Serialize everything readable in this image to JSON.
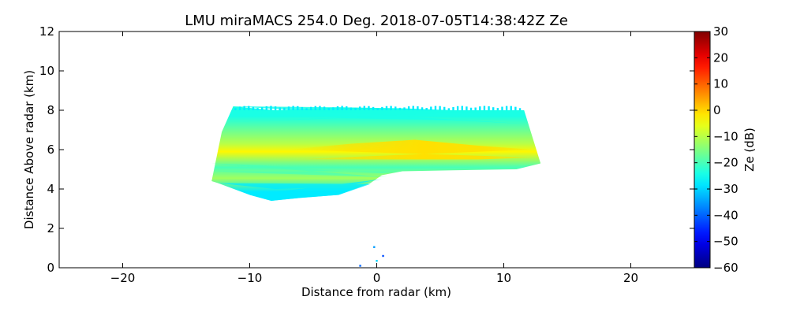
{
  "chart_data": {
    "type": "heatmap",
    "title": "LMU miraMACS 254.0 Deg. 2018-07-05T14:38:42Z  Ze",
    "xlabel": "Distance from radar (km)",
    "ylabel": "Distance Above radar  (km)",
    "xlim": [
      -25,
      25
    ],
    "ylim": [
      0,
      12
    ],
    "xticks": [
      -20,
      -10,
      0,
      10,
      20
    ],
    "yticks": [
      0,
      2,
      4,
      6,
      8,
      10,
      12
    ],
    "colorbar": {
      "label": "Ze (dB)",
      "range": [
        -60,
        30
      ],
      "ticks": [
        30,
        20,
        10,
        0,
        -10,
        -20,
        -30,
        -40,
        -50,
        -60
      ],
      "colormap": "jet"
    },
    "echo_region": {
      "top_km": 8.2,
      "bottom_left_km": 3.4,
      "bottom_right_km": 5.3,
      "left_edge_km": -13,
      "right_edge_km": 12.9
    },
    "layers": [
      {
        "name": "upper edge",
        "y_top": 8.1,
        "y_bottom": 7.3,
        "ze_db": -24
      },
      {
        "name": "upper main",
        "y_top": 7.3,
        "y_bottom": 5.3,
        "ze_db": -10
      },
      {
        "name": "core",
        "y_top": 6.4,
        "y_bottom": 5.4,
        "ze_db": -3
      },
      {
        "name": "mid band",
        "y_top": 5.3,
        "y_bottom": 4.9,
        "ze_db": -20
      },
      {
        "name": "lower main",
        "y_top": 4.9,
        "y_bottom": 4.2,
        "ze_db": -12
      },
      {
        "name": "lower edge",
        "y_top": 4.2,
        "y_bottom": 3.5,
        "ze_db": -28
      }
    ],
    "ground_clutter": [
      {
        "x": -0.2,
        "y": 1.05,
        "ze_db": -35
      },
      {
        "x": 0.5,
        "y": 0.6,
        "ze_db": -42
      },
      {
        "x": -1.3,
        "y": 0.1,
        "ze_db": -40
      },
      {
        "x": 0.0,
        "y": 0.35,
        "ze_db": -30
      }
    ]
  }
}
